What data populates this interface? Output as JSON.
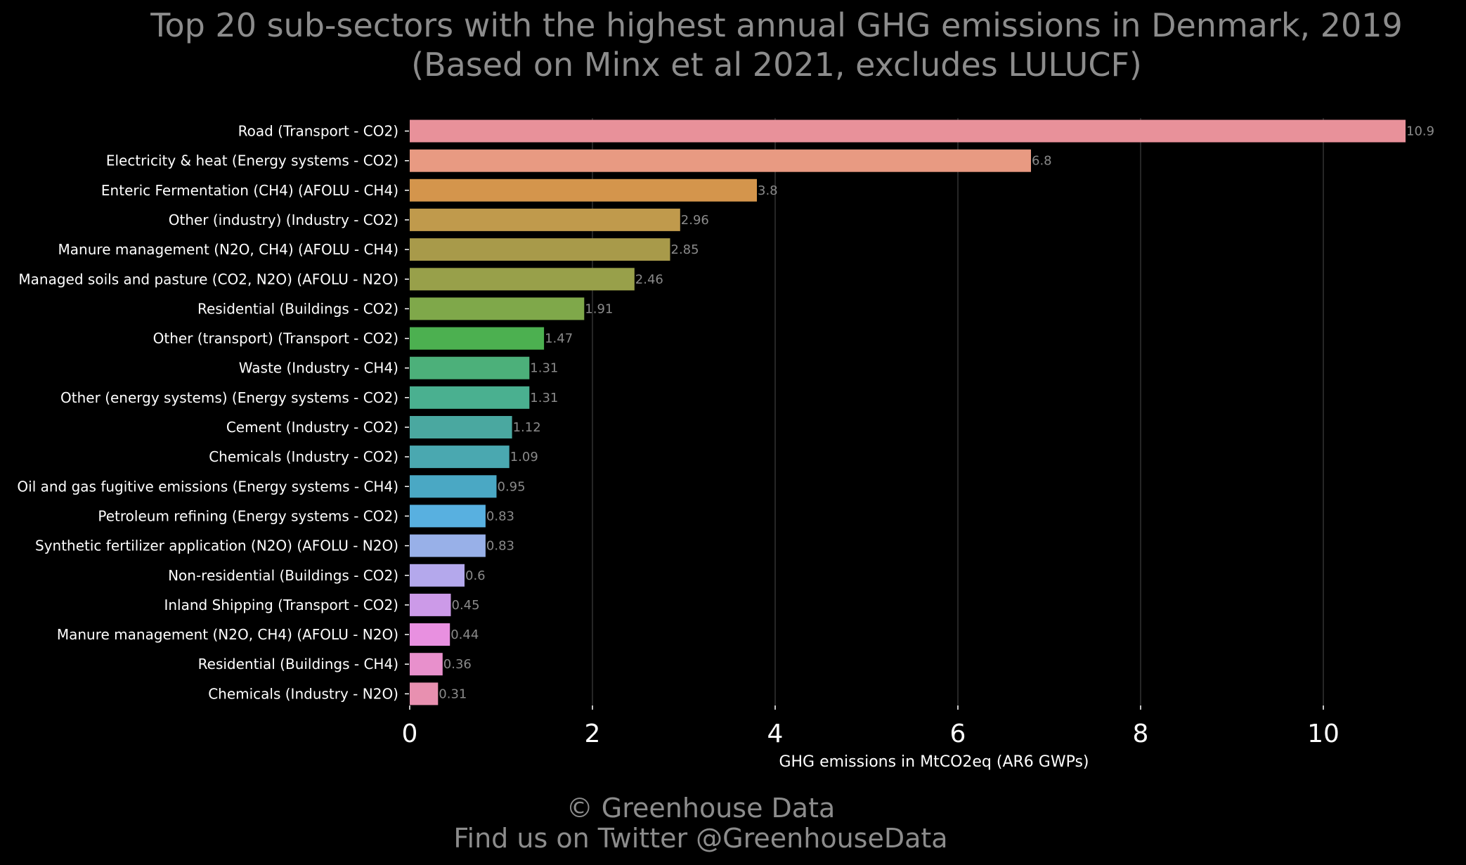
{
  "chart_data": {
    "type": "bar",
    "orientation": "horizontal",
    "title": "Top 20 sub-sectors with the highest annual GHG emissions in Denmark, 2019",
    "subtitle": "(Based on Minx et al 2021, excludes LULUCF)",
    "xlabel": "GHG emissions in MtCO2eq (AR6 GWPs)",
    "ylabel": "",
    "xlim": [
      0,
      11.2
    ],
    "xticks": [
      0,
      2,
      4,
      6,
      8,
      10
    ],
    "grid": "vertical",
    "categories": [
      "Road (Transport - CO2)",
      "Electricity & heat (Energy systems - CO2)",
      "Enteric Fermentation (CH4) (AFOLU - CH4)",
      "Other (industry) (Industry - CO2)",
      "Manure management (N2O, CH4) (AFOLU - CH4)",
      "Managed soils and pasture (CO2, N2O) (AFOLU - N2O)",
      "Residential (Buildings - CO2)",
      "Other (transport) (Transport - CO2)",
      "Waste (Industry - CH4)",
      "Other (energy systems) (Energy systems - CO2)",
      "Cement (Industry - CO2)",
      "Chemicals (Industry - CO2)",
      "Oil and gas fugitive emissions (Energy systems - CH4)",
      "Petroleum refining (Energy systems - CO2)",
      "Synthetic fertilizer application (N2O) (AFOLU - N2O)",
      "Non-residential (Buildings - CO2)",
      "Inland Shipping (Transport - CO2)",
      "Manure management (N2O, CH4) (AFOLU - N2O)",
      "Residential (Buildings - CH4)",
      "Chemicals (Industry - N2O)"
    ],
    "values": [
      10.9,
      6.8,
      3.8,
      2.96,
      2.85,
      2.46,
      1.91,
      1.47,
      1.31,
      1.31,
      1.12,
      1.09,
      0.95,
      0.83,
      0.83,
      0.6,
      0.45,
      0.44,
      0.36,
      0.31
    ],
    "value_labels": [
      "10.9",
      "6.8",
      "3.8",
      "2.96",
      "2.85",
      "2.46",
      "1.91",
      "1.47",
      "1.31",
      "1.31",
      "1.12",
      "1.09",
      "0.95",
      "0.83",
      "0.83",
      "0.6",
      "0.45",
      "0.44",
      "0.36",
      "0.31"
    ],
    "colors": [
      "#e8919a",
      "#e89a82",
      "#d4954c",
      "#c09a4c",
      "#a89a4a",
      "#98a04a",
      "#7fa84a",
      "#4cb050",
      "#4cb07a",
      "#4ab090",
      "#4aa8a0",
      "#4aa8b0",
      "#4aa8c4",
      "#58b0e0",
      "#98b0e8",
      "#b4a8ec",
      "#cc9ae8",
      "#e890e0",
      "#e890cc",
      "#e890b0"
    ]
  },
  "credits": {
    "line1": "© Greenhouse Data",
    "line2": "Find us on Twitter @GreenhouseData"
  }
}
